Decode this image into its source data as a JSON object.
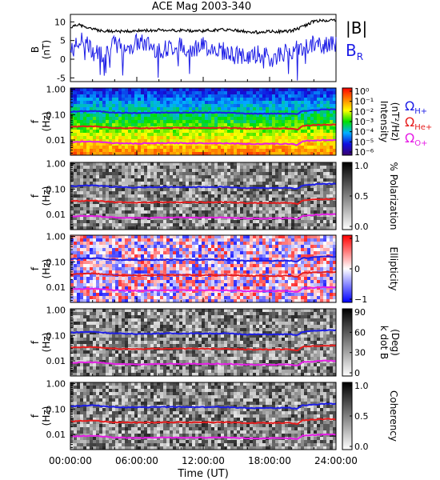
{
  "title": "ACE Mag 2003-340",
  "x_axis": {
    "label": "Time (UT)",
    "ticks": [
      "00:00:00",
      "06:00:00",
      "12:00:00",
      "18:00:00",
      "24:00:00"
    ],
    "range_hours": [
      0,
      24
    ]
  },
  "legend_top": {
    "b_label": "|B|",
    "br_label": "B",
    "br_sub": "R"
  },
  "legend_gyro": [
    {
      "label": "Ω",
      "sub": "H+",
      "color": "#1e1ee6"
    },
    {
      "label": "Ω",
      "sub": "He+",
      "color": "#e61e1e"
    },
    {
      "label": "Ω",
      "sub": "O+",
      "color": "#e61ee6"
    }
  ],
  "colors": {
    "b_total": "#000000",
    "b_r": "#1e1ee6",
    "gyro_h": "#1e1ee6",
    "gyro_he": "#e61e1e",
    "gyro_o": "#e61ee6"
  },
  "chart_data": [
    {
      "type": "line",
      "panel": "B",
      "ylabel": "B",
      "yunit": "(nT)",
      "ylim": [
        -6,
        12
      ],
      "yticks": [
        "-5",
        "0",
        "5",
        "10"
      ],
      "series": [
        {
          "name": "|B|",
          "x_hours": [
            0,
            0.5,
            1,
            1.5,
            2,
            3,
            4,
            5,
            6,
            7,
            8,
            9,
            10,
            11,
            12,
            13,
            14,
            15,
            16,
            17,
            18,
            19,
            20,
            21,
            22,
            23,
            24
          ],
          "values": [
            8.5,
            9.3,
            9.0,
            8.4,
            8.0,
            7.6,
            7.4,
            7.5,
            7.6,
            7.7,
            7.8,
            7.8,
            7.7,
            7.6,
            7.6,
            7.8,
            7.9,
            7.7,
            7.3,
            7.2,
            7.4,
            7.4,
            7.6,
            8.7,
            10.2,
            10.4,
            10.5
          ]
        },
        {
          "name": "B_R",
          "x_hours": [
            0,
            0.5,
            1,
            1.5,
            2,
            3,
            4,
            5,
            6,
            7,
            8,
            9,
            10,
            11,
            12,
            13,
            14,
            15,
            16,
            17,
            18,
            19,
            20,
            21,
            22,
            23,
            24
          ],
          "values": [
            2.0,
            3.5,
            5.0,
            4.5,
            2.0,
            1.5,
            4.0,
            3.0,
            4.5,
            4.0,
            2.5,
            3.0,
            3.5,
            3.0,
            3.5,
            3.0,
            2.0,
            1.0,
            0.5,
            1.5,
            0.0,
            1.5,
            2.5,
            3.0,
            4.0,
            3.5,
            4.0
          ]
        }
      ]
    },
    {
      "type": "heatmap",
      "panel": "intensity",
      "ylabel": "f",
      "yunit": "(Hz)",
      "ylim_log10": [
        -2.6,
        0.05
      ],
      "yticks": [
        "1.00",
        "0.10",
        "0.01"
      ],
      "colorbar": {
        "label": "Intensity",
        "unit": "(nT²/Hz)",
        "ticks": [
          "10⁰",
          "10⁻¹",
          "10⁻²",
          "10⁻³",
          "10⁻⁴",
          "10⁻⁵",
          "10⁻⁶"
        ],
        "scale": "rainbow"
      }
    },
    {
      "type": "heatmap",
      "panel": "polarization",
      "ylabel": "f",
      "yunit": "(Hz)",
      "yticks": [
        "1.00",
        "0.10",
        "0.01"
      ],
      "colorbar": {
        "label": "% Polarization",
        "ticks": [
          "1.0",
          "0.5",
          "0.0"
        ],
        "scale": "gray"
      }
    },
    {
      "type": "heatmap",
      "panel": "ellipticity",
      "ylabel": "f",
      "yunit": "(Hz)",
      "yticks": [
        "1.00",
        "0.10",
        "0.01"
      ],
      "colorbar": {
        "label": "Ellipticity",
        "ticks": [
          "1",
          "0",
          "−1"
        ],
        "scale": "bwr"
      }
    },
    {
      "type": "heatmap",
      "panel": "kdotb",
      "ylabel": "f",
      "yunit": "(Hz)",
      "yticks": [
        "1.00",
        "0.10",
        "0.01"
      ],
      "colorbar": {
        "label": "k dot B",
        "unit": "(Deg)",
        "ticks": [
          "90",
          "60",
          "30",
          "0"
        ],
        "scale": "gray"
      }
    },
    {
      "type": "heatmap",
      "panel": "coherency",
      "ylabel": "f",
      "yunit": "(Hz)",
      "yticks": [
        "1.00",
        "0.10",
        "0.01"
      ],
      "colorbar": {
        "label": "Coherency",
        "ticks": [
          "1.0",
          "0.5",
          "0.0"
        ],
        "scale": "gray"
      }
    },
    {
      "type": "line",
      "panel": "gyrofrequencies",
      "x_hours": [
        0,
        2,
        4,
        6,
        8,
        10,
        12,
        14,
        16,
        17,
        18,
        20,
        20.5,
        21,
        22,
        23,
        24
      ],
      "series": [
        {
          "name": "Ω H+ (Hz)",
          "values": [
            0.13,
            0.14,
            0.12,
            0.115,
            0.12,
            0.12,
            0.12,
            0.12,
            0.11,
            0.11,
            0.11,
            0.11,
            0.1,
            0.14,
            0.15,
            0.16,
            0.16
          ]
        },
        {
          "name": "Ω He+ (Hz)",
          "values": [
            0.033,
            0.035,
            0.03,
            0.029,
            0.03,
            0.03,
            0.03,
            0.03,
            0.028,
            0.028,
            0.028,
            0.028,
            0.025,
            0.036,
            0.038,
            0.04,
            0.04
          ]
        },
        {
          "name": "Ω O+ (Hz)",
          "values": [
            0.0083,
            0.0088,
            0.0075,
            0.0072,
            0.0075,
            0.0075,
            0.0075,
            0.0075,
            0.007,
            0.007,
            0.007,
            0.007,
            0.0063,
            0.009,
            0.0095,
            0.01,
            0.01
          ]
        }
      ]
    }
  ]
}
